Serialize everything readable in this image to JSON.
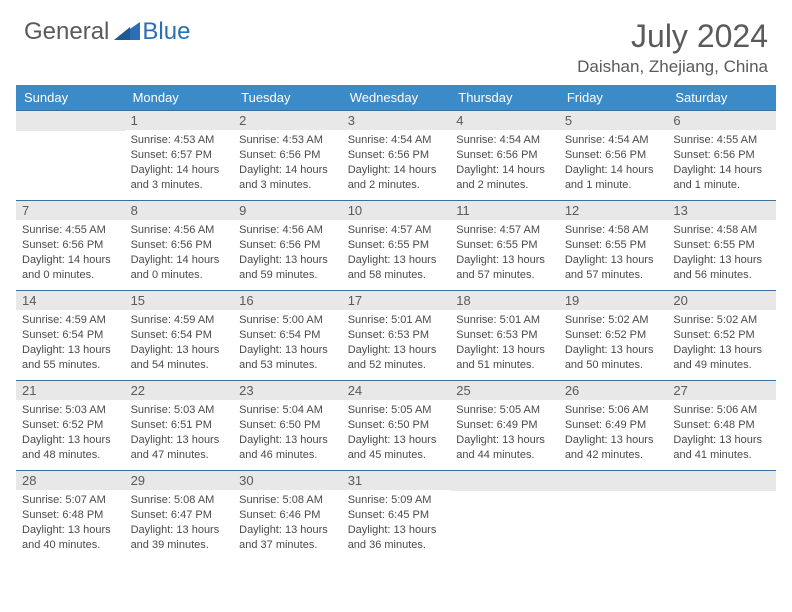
{
  "logo": {
    "general": "General",
    "blue": "Blue"
  },
  "title": "July 2024",
  "location": "Daishan, Zhejiang, China",
  "colors": {
    "header_bg": "#3b8bc8",
    "header_text": "#ffffff",
    "daynum_bg": "#e8e8e8",
    "text": "#5a5a5a",
    "border": "#3b6fa0",
    "logo_blue": "#2a6fb5"
  },
  "weekdays": [
    "Sunday",
    "Monday",
    "Tuesday",
    "Wednesday",
    "Thursday",
    "Friday",
    "Saturday"
  ],
  "weeks": [
    [
      {
        "empty": true
      },
      {
        "n": "1",
        "sr": "Sunrise: 4:53 AM",
        "ss": "Sunset: 6:57 PM",
        "dl": "Daylight: 14 hours and 3 minutes."
      },
      {
        "n": "2",
        "sr": "Sunrise: 4:53 AM",
        "ss": "Sunset: 6:56 PM",
        "dl": "Daylight: 14 hours and 3 minutes."
      },
      {
        "n": "3",
        "sr": "Sunrise: 4:54 AM",
        "ss": "Sunset: 6:56 PM",
        "dl": "Daylight: 14 hours and 2 minutes."
      },
      {
        "n": "4",
        "sr": "Sunrise: 4:54 AM",
        "ss": "Sunset: 6:56 PM",
        "dl": "Daylight: 14 hours and 2 minutes."
      },
      {
        "n": "5",
        "sr": "Sunrise: 4:54 AM",
        "ss": "Sunset: 6:56 PM",
        "dl": "Daylight: 14 hours and 1 minute."
      },
      {
        "n": "6",
        "sr": "Sunrise: 4:55 AM",
        "ss": "Sunset: 6:56 PM",
        "dl": "Daylight: 14 hours and 1 minute."
      }
    ],
    [
      {
        "n": "7",
        "sr": "Sunrise: 4:55 AM",
        "ss": "Sunset: 6:56 PM",
        "dl": "Daylight: 14 hours and 0 minutes."
      },
      {
        "n": "8",
        "sr": "Sunrise: 4:56 AM",
        "ss": "Sunset: 6:56 PM",
        "dl": "Daylight: 14 hours and 0 minutes."
      },
      {
        "n": "9",
        "sr": "Sunrise: 4:56 AM",
        "ss": "Sunset: 6:56 PM",
        "dl": "Daylight: 13 hours and 59 minutes."
      },
      {
        "n": "10",
        "sr": "Sunrise: 4:57 AM",
        "ss": "Sunset: 6:55 PM",
        "dl": "Daylight: 13 hours and 58 minutes."
      },
      {
        "n": "11",
        "sr": "Sunrise: 4:57 AM",
        "ss": "Sunset: 6:55 PM",
        "dl": "Daylight: 13 hours and 57 minutes."
      },
      {
        "n": "12",
        "sr": "Sunrise: 4:58 AM",
        "ss": "Sunset: 6:55 PM",
        "dl": "Daylight: 13 hours and 57 minutes."
      },
      {
        "n": "13",
        "sr": "Sunrise: 4:58 AM",
        "ss": "Sunset: 6:55 PM",
        "dl": "Daylight: 13 hours and 56 minutes."
      }
    ],
    [
      {
        "n": "14",
        "sr": "Sunrise: 4:59 AM",
        "ss": "Sunset: 6:54 PM",
        "dl": "Daylight: 13 hours and 55 minutes."
      },
      {
        "n": "15",
        "sr": "Sunrise: 4:59 AM",
        "ss": "Sunset: 6:54 PM",
        "dl": "Daylight: 13 hours and 54 minutes."
      },
      {
        "n": "16",
        "sr": "Sunrise: 5:00 AM",
        "ss": "Sunset: 6:54 PM",
        "dl": "Daylight: 13 hours and 53 minutes."
      },
      {
        "n": "17",
        "sr": "Sunrise: 5:01 AM",
        "ss": "Sunset: 6:53 PM",
        "dl": "Daylight: 13 hours and 52 minutes."
      },
      {
        "n": "18",
        "sr": "Sunrise: 5:01 AM",
        "ss": "Sunset: 6:53 PM",
        "dl": "Daylight: 13 hours and 51 minutes."
      },
      {
        "n": "19",
        "sr": "Sunrise: 5:02 AM",
        "ss": "Sunset: 6:52 PM",
        "dl": "Daylight: 13 hours and 50 minutes."
      },
      {
        "n": "20",
        "sr": "Sunrise: 5:02 AM",
        "ss": "Sunset: 6:52 PM",
        "dl": "Daylight: 13 hours and 49 minutes."
      }
    ],
    [
      {
        "n": "21",
        "sr": "Sunrise: 5:03 AM",
        "ss": "Sunset: 6:52 PM",
        "dl": "Daylight: 13 hours and 48 minutes."
      },
      {
        "n": "22",
        "sr": "Sunrise: 5:03 AM",
        "ss": "Sunset: 6:51 PM",
        "dl": "Daylight: 13 hours and 47 minutes."
      },
      {
        "n": "23",
        "sr": "Sunrise: 5:04 AM",
        "ss": "Sunset: 6:50 PM",
        "dl": "Daylight: 13 hours and 46 minutes."
      },
      {
        "n": "24",
        "sr": "Sunrise: 5:05 AM",
        "ss": "Sunset: 6:50 PM",
        "dl": "Daylight: 13 hours and 45 minutes."
      },
      {
        "n": "25",
        "sr": "Sunrise: 5:05 AM",
        "ss": "Sunset: 6:49 PM",
        "dl": "Daylight: 13 hours and 44 minutes."
      },
      {
        "n": "26",
        "sr": "Sunrise: 5:06 AM",
        "ss": "Sunset: 6:49 PM",
        "dl": "Daylight: 13 hours and 42 minutes."
      },
      {
        "n": "27",
        "sr": "Sunrise: 5:06 AM",
        "ss": "Sunset: 6:48 PM",
        "dl": "Daylight: 13 hours and 41 minutes."
      }
    ],
    [
      {
        "n": "28",
        "sr": "Sunrise: 5:07 AM",
        "ss": "Sunset: 6:48 PM",
        "dl": "Daylight: 13 hours and 40 minutes."
      },
      {
        "n": "29",
        "sr": "Sunrise: 5:08 AM",
        "ss": "Sunset: 6:47 PM",
        "dl": "Daylight: 13 hours and 39 minutes."
      },
      {
        "n": "30",
        "sr": "Sunrise: 5:08 AM",
        "ss": "Sunset: 6:46 PM",
        "dl": "Daylight: 13 hours and 37 minutes."
      },
      {
        "n": "31",
        "sr": "Sunrise: 5:09 AM",
        "ss": "Sunset: 6:45 PM",
        "dl": "Daylight: 13 hours and 36 minutes."
      },
      {
        "empty": true
      },
      {
        "empty": true
      },
      {
        "empty": true
      }
    ]
  ]
}
